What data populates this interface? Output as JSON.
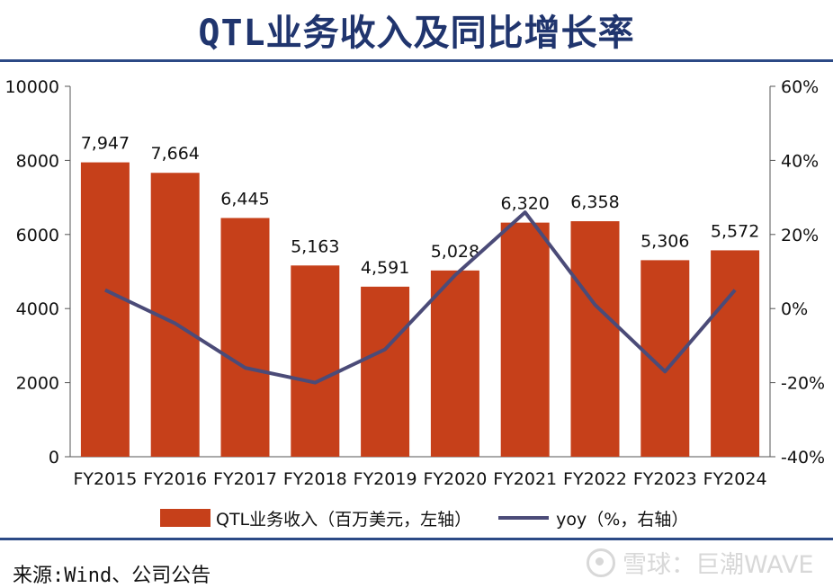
{
  "title": "QTL业务收入及同比增长率",
  "source": "来源:Wind、公司公告",
  "watermark": "雪球：巨潮WAVE",
  "colors": {
    "bar": "#c6401a",
    "line": "#4b4b78",
    "title": "#20356e",
    "rule": "#2c4a86"
  },
  "legend": {
    "bar_label": "QTL业务收入（百万美元，左轴）",
    "line_label": "yoy（%，右轴）"
  },
  "chart_data": {
    "type": "bar",
    "categories": [
      "FY2015",
      "FY2016",
      "FY2017",
      "FY2018",
      "FY2019",
      "FY2020",
      "FY2021",
      "FY2022",
      "FY2023",
      "FY2024"
    ],
    "series": [
      {
        "name": "QTL业务收入（百万美元，左轴）",
        "type": "bar",
        "axis": "left",
        "values": [
          7947,
          7664,
          6445,
          5163,
          4591,
          5028,
          6320,
          6358,
          5306,
          5572
        ],
        "data_labels": [
          "7,947",
          "7,664",
          "6,445",
          "5,163",
          "4,591",
          "5,028",
          "6,320",
          "6,358",
          "5,306",
          "5,572"
        ]
      },
      {
        "name": "yoy（%，右轴）",
        "type": "line",
        "axis": "right",
        "values": [
          5,
          -4,
          -16,
          -20,
          -11,
          9,
          26,
          1,
          -17,
          5
        ]
      }
    ],
    "left_axis": {
      "min": 0,
      "max": 10000,
      "ticks": [
        0,
        2000,
        4000,
        6000,
        8000,
        10000
      ],
      "tick_labels": [
        "0",
        "2000",
        "4000",
        "6000",
        "8000",
        "10000"
      ]
    },
    "right_axis": {
      "min": -40,
      "max": 60,
      "ticks": [
        -40,
        -20,
        0,
        20,
        40,
        60
      ],
      "tick_labels": [
        "-40%",
        "-20%",
        "0%",
        "20%",
        "40%",
        "60%"
      ]
    },
    "grid": false,
    "legend_position": "bottom"
  }
}
